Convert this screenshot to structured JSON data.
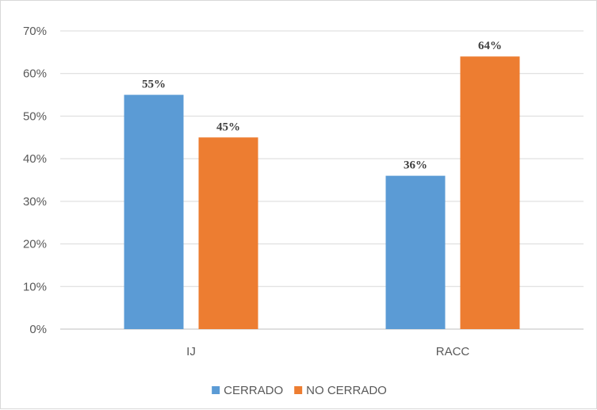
{
  "chart_data": {
    "type": "bar",
    "categories": [
      "IJ",
      "RACC"
    ],
    "series": [
      {
        "name": "CERRADO",
        "values": [
          55,
          36
        ],
        "labels": [
          "55%",
          "36%"
        ],
        "color": "#5b9bd5"
      },
      {
        "name": "NO CERRADO",
        "values": [
          45,
          64
        ],
        "labels": [
          "45%",
          "64%"
        ],
        "color": "#ed7d31"
      }
    ],
    "ylim": [
      0,
      70
    ],
    "yticks": [
      "0%",
      "10%",
      "20%",
      "30%",
      "40%",
      "50%",
      "60%",
      "70%"
    ],
    "grid": true,
    "legend": "bottom",
    "title": "",
    "xlabel": "",
    "ylabel": ""
  }
}
